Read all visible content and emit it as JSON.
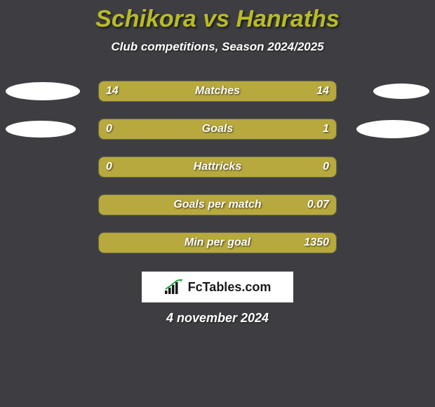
{
  "title": "Schikora vs Hanraths",
  "subtitle": "Club competitions, Season 2024/2025",
  "date": "4 november 2024",
  "branding": {
    "text": "FcTables.com"
  },
  "colors": {
    "background": "#3e3e42",
    "title": "#b8bb26",
    "text": "#ffffff",
    "bar_fill": "#b8a93e",
    "bar_bg": "#43443a",
    "bar_border": "#6a6c48",
    "ellipse": "#ffffff"
  },
  "ellipses": {
    "row0": {
      "left_w": 106,
      "left_h": 26,
      "right_w": 80,
      "right_h": 22
    },
    "row1": {
      "left_w": 100,
      "left_h": 24,
      "right_w": 104,
      "right_h": 26
    }
  },
  "rows": [
    {
      "label": "Matches",
      "left_value": "14",
      "right_value": "14",
      "left_fill_pct": 50,
      "right_fill_pct": 50,
      "has_ellipses": true,
      "ellipse_key": "row0"
    },
    {
      "label": "Goals",
      "left_value": "0",
      "right_value": "1",
      "left_fill_pct": 18,
      "right_fill_pct": 82,
      "has_ellipses": true,
      "ellipse_key": "row1"
    },
    {
      "label": "Hattricks",
      "left_value": "0",
      "right_value": "0",
      "left_fill_pct": 100,
      "right_fill_pct": 0,
      "has_ellipses": false
    },
    {
      "label": "Goals per match",
      "left_value": "",
      "right_value": "0.07",
      "left_fill_pct": 18,
      "right_fill_pct": 82,
      "has_ellipses": false
    },
    {
      "label": "Min per goal",
      "left_value": "",
      "right_value": "1350",
      "left_fill_pct": 18,
      "right_fill_pct": 82,
      "has_ellipses": false
    }
  ]
}
